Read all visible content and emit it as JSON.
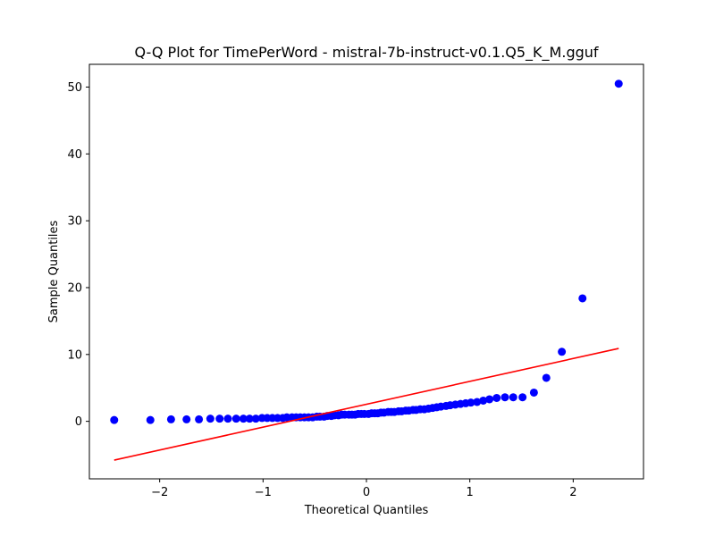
{
  "chart_data": {
    "type": "scatter",
    "title": "Q-Q Plot for TimePerWord - mistral-7b-instruct-v0.1.Q5_K_M.gguf",
    "xlabel": "Theoretical Quantiles",
    "ylabel": "Sample Quantiles",
    "xlim": [
      -2.68,
      2.68
    ],
    "ylim": [
      -8.6,
      53.4
    ],
    "xticks": [
      -2,
      -1,
      0,
      1,
      2
    ],
    "yticks": [
      0,
      10,
      20,
      30,
      40,
      50
    ],
    "grid": false,
    "legend": "none",
    "colors": {
      "points": "#0000ff",
      "line": "#ff0000"
    },
    "series": [
      {
        "type": "scatter",
        "x": [
          -2.44,
          -2.09,
          -1.89,
          -1.74,
          -1.62,
          -1.51,
          -1.42,
          -1.34,
          -1.26,
          -1.19,
          -1.13,
          -1.07,
          -1.01,
          -0.96,
          -0.91,
          -0.86,
          -0.81,
          -0.77,
          -0.72,
          -0.68,
          -0.64,
          -0.6,
          -0.56,
          -0.52,
          -0.48,
          -0.45,
          -0.41,
          -0.38,
          -0.34,
          -0.31,
          -0.27,
          -0.24,
          -0.21,
          -0.17,
          -0.14,
          -0.11,
          -0.08,
          -0.05,
          -0.02,
          0.02,
          0.05,
          0.08,
          0.11,
          0.14,
          0.17,
          0.21,
          0.24,
          0.27,
          0.31,
          0.34,
          0.38,
          0.41,
          0.45,
          0.48,
          0.52,
          0.56,
          0.6,
          0.64,
          0.68,
          0.72,
          0.77,
          0.81,
          0.86,
          0.91,
          0.96,
          1.01,
          1.07,
          1.13,
          1.19,
          1.26,
          1.34,
          1.42,
          1.51,
          1.62,
          1.74,
          1.89,
          2.09,
          2.44
        ],
        "y": [
          0.2,
          0.2,
          0.3,
          0.3,
          0.3,
          0.4,
          0.4,
          0.4,
          0.4,
          0.4,
          0.4,
          0.4,
          0.5,
          0.5,
          0.5,
          0.5,
          0.5,
          0.6,
          0.6,
          0.6,
          0.6,
          0.6,
          0.6,
          0.6,
          0.7,
          0.7,
          0.7,
          0.8,
          0.8,
          0.9,
          0.9,
          1.0,
          1.0,
          1.0,
          1.0,
          1.0,
          1.1,
          1.1,
          1.1,
          1.1,
          1.2,
          1.2,
          1.2,
          1.3,
          1.3,
          1.4,
          1.4,
          1.4,
          1.5,
          1.5,
          1.6,
          1.6,
          1.7,
          1.7,
          1.8,
          1.8,
          1.9,
          2.0,
          2.1,
          2.2,
          2.3,
          2.4,
          2.5,
          2.6,
          2.7,
          2.8,
          2.9,
          3.1,
          3.3,
          3.5,
          3.6,
          3.6,
          3.6,
          4.3,
          6.5,
          10.4,
          18.4,
          50.5
        ]
      },
      {
        "type": "line",
        "x": [
          -2.44,
          2.44
        ],
        "y": [
          -5.8,
          10.9
        ]
      }
    ]
  }
}
